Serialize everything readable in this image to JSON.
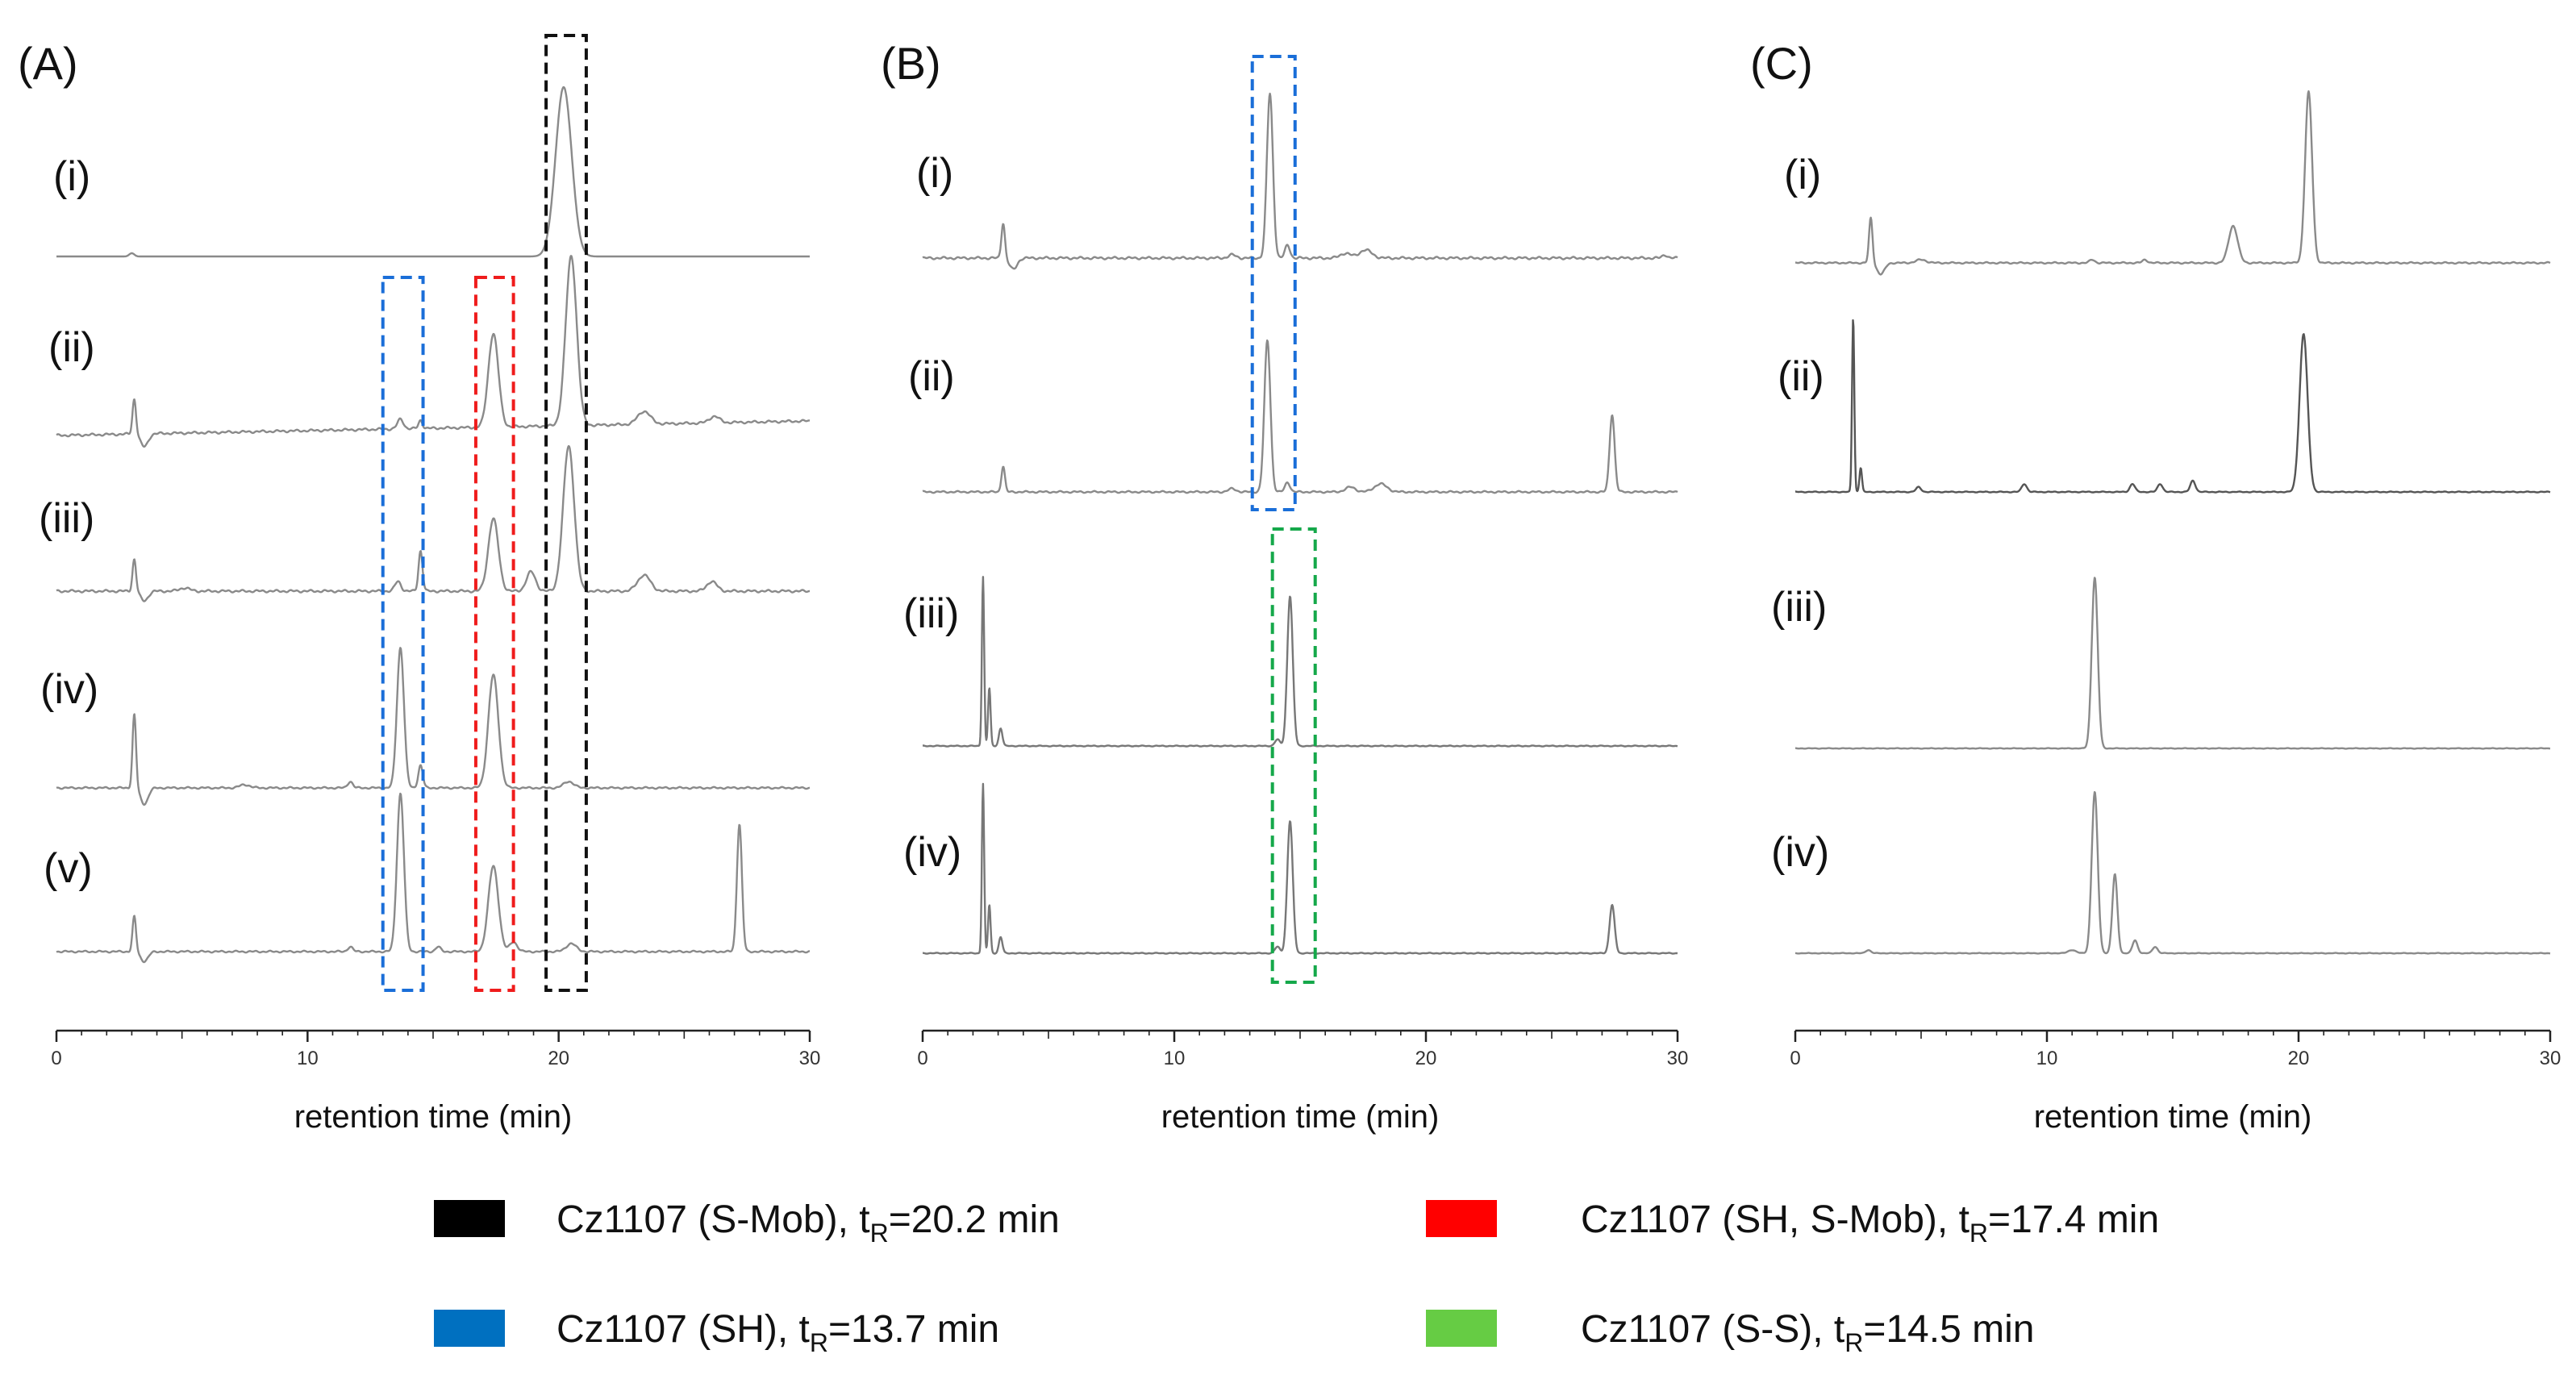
{
  "chart_data": {
    "type": "line",
    "xaxis": {
      "label": "retention time (min)",
      "range": [
        0,
        30
      ],
      "ticks": [
        0,
        10,
        20,
        30
      ]
    },
    "panels": [
      {
        "label": "(A)",
        "traces": [
          {
            "label": "(i)",
            "color": "#8a8a8a",
            "noise": 0.0,
            "peaks": [
              [
                3.0,
                2,
                0.1
              ],
              [
                20.2,
                105,
                0.32
              ]
            ]
          },
          {
            "label": "(ii)",
            "color": "#8a8a8a",
            "noise": 0.8,
            "peaks": [
              [
                3.1,
                22,
                0.07
              ],
              [
                3.5,
                -8,
                0.15
              ],
              [
                13.7,
                6,
                0.12
              ],
              [
                14.5,
                5,
                0.08
              ],
              [
                17.4,
                58,
                0.2
              ],
              [
                20.5,
                105,
                0.22
              ],
              [
                23.4,
                8,
                0.25
              ],
              [
                26.2,
                4,
                0.2
              ]
            ]
          },
          {
            "label": "(iii)",
            "color": "#8a8a8a",
            "noise": 0.8,
            "peaks": [
              [
                3.1,
                20,
                0.07
              ],
              [
                3.5,
                -6,
                0.15
              ],
              [
                5.1,
                2,
                0.2
              ],
              [
                13.6,
                6,
                0.12
              ],
              [
                14.5,
                25,
                0.08
              ],
              [
                17.4,
                45,
                0.2
              ],
              [
                18.9,
                12,
                0.18
              ],
              [
                20.4,
                90,
                0.22
              ],
              [
                23.4,
                10,
                0.25
              ],
              [
                26.1,
                6,
                0.2
              ]
            ]
          },
          {
            "label": "(iv)",
            "color": "#8a8a8a",
            "noise": 0.6,
            "peaks": [
              [
                3.1,
                46,
                0.07
              ],
              [
                3.5,
                -10,
                0.15
              ],
              [
                7.5,
                2,
                0.2
              ],
              [
                11.7,
                4,
                0.1
              ],
              [
                13.7,
                87,
                0.14
              ],
              [
                14.5,
                14,
                0.09
              ],
              [
                17.4,
                70,
                0.2
              ],
              [
                20.4,
                4,
                0.2
              ]
            ]
          },
          {
            "label": "(v)",
            "color": "#8a8a8a",
            "noise": 0.6,
            "peaks": [
              [
                3.1,
                22,
                0.07
              ],
              [
                3.5,
                -6,
                0.15
              ],
              [
                11.7,
                3,
                0.1
              ],
              [
                13.7,
                98,
                0.14
              ],
              [
                15.2,
                3,
                0.1
              ],
              [
                17.4,
                53,
                0.2
              ],
              [
                18.2,
                6,
                0.15
              ],
              [
                20.5,
                5,
                0.2
              ],
              [
                27.2,
                79,
                0.1
              ]
            ]
          }
        ],
        "highlights": [
          {
            "color": "#1a6ed8",
            "x": [
              13.0,
              14.6
            ],
            "traces": [
              1,
              4
            ]
          },
          {
            "color": "#ef1c1c",
            "x": [
              16.7,
              18.2
            ],
            "traces": [
              1,
              4
            ]
          },
          {
            "color": "#111111",
            "x": [
              19.5,
              21.1
            ],
            "traces": [
              0,
              4
            ]
          }
        ]
      },
      {
        "label": "(B)",
        "traces": [
          {
            "label": "(i)",
            "color": "#8a8a8a",
            "noise": 0.8,
            "peaks": [
              [
                3.2,
                22,
                0.07
              ],
              [
                3.6,
                -7,
                0.15
              ],
              [
                12.3,
                2,
                0.15
              ],
              [
                13.8,
                102,
                0.12
              ],
              [
                14.5,
                8,
                0.1
              ],
              [
                16.8,
                3,
                0.2
              ],
              [
                17.6,
                5,
                0.25
              ],
              [
                29.5,
                2,
                0.1
              ]
            ]
          },
          {
            "label": "(ii)",
            "color": "#8a8a8a",
            "noise": 0.6,
            "peaks": [
              [
                3.2,
                16,
                0.07
              ],
              [
                12.3,
                2,
                0.15
              ],
              [
                13.7,
                94,
                0.12
              ],
              [
                14.5,
                6,
                0.1
              ],
              [
                17.0,
                3,
                0.2
              ],
              [
                18.2,
                5,
                0.25
              ],
              [
                27.4,
                48,
                0.1
              ]
            ]
          },
          {
            "label": "(iii)",
            "color": "#777777",
            "noise": 0.3,
            "peaks": [
              [
                2.4,
                105,
                0.045
              ],
              [
                2.65,
                36,
                0.05
              ],
              [
                3.1,
                11,
                0.07
              ],
              [
                14.1,
                4,
                0.1
              ],
              [
                14.6,
                93,
                0.11
              ]
            ]
          },
          {
            "label": "(iv)",
            "color": "#777777",
            "noise": 0.3,
            "peaks": [
              [
                2.4,
                105,
                0.045
              ],
              [
                2.65,
                30,
                0.05
              ],
              [
                3.1,
                10,
                0.07
              ],
              [
                14.1,
                4,
                0.1
              ],
              [
                14.6,
                82,
                0.11
              ],
              [
                27.4,
                30,
                0.1
              ]
            ]
          }
        ],
        "highlights": [
          {
            "color": "#1a6ed8",
            "x": [
              13.1,
              14.8
            ],
            "traces": [
              0,
              1
            ]
          },
          {
            "color": "#15a84a",
            "x": [
              13.9,
              15.6
            ],
            "traces": [
              2,
              3
            ]
          }
        ]
      },
      {
        "label": "(C)",
        "traces": [
          {
            "label": "(i)",
            "color": "#8a8a8a",
            "noise": 0.5,
            "peaks": [
              [
                3.0,
                28,
                0.07
              ],
              [
                3.4,
                -7,
                0.15
              ],
              [
                5.0,
                2,
                0.2
              ],
              [
                11.8,
                2,
                0.1
              ],
              [
                13.9,
                2,
                0.1
              ],
              [
                17.4,
                23,
                0.18
              ],
              [
                20.4,
                106,
                0.14
              ]
            ]
          },
          {
            "label": "(ii)",
            "color": "#555555",
            "noise": 0.3,
            "peaks": [
              [
                2.3,
                108,
                0.045
              ],
              [
                2.6,
                15,
                0.05
              ],
              [
                4.9,
                3,
                0.1
              ],
              [
                9.1,
                5,
                0.1
              ],
              [
                13.4,
                5,
                0.1
              ],
              [
                14.5,
                5,
                0.1
              ],
              [
                15.8,
                7,
                0.1
              ],
              [
                20.2,
                98,
                0.16
              ]
            ]
          },
          {
            "label": "(iii)",
            "color": "#8a8a8a",
            "noise": 0.2,
            "peaks": [
              [
                11.9,
                106,
                0.12
              ]
            ]
          },
          {
            "label": "(iv)",
            "color": "#8a8a8a",
            "noise": 0.2,
            "peaks": [
              [
                2.9,
                2,
                0.1
              ],
              [
                11.0,
                2,
                0.15
              ],
              [
                11.9,
                100,
                0.12
              ],
              [
                12.7,
                49,
                0.1
              ],
              [
                13.5,
                8,
                0.1
              ],
              [
                14.3,
                4,
                0.1
              ]
            ]
          }
        ],
        "highlights": []
      }
    ]
  },
  "legend": [
    {
      "color": "#000000",
      "name": "Cz1107 (S-Mob), t",
      "sub": "R",
      "rest": "=20.2 min"
    },
    {
      "color": "#ff0000",
      "name": "Cz1107 (SH, S-Mob), t",
      "sub": "R",
      "rest": "=17.4 min"
    },
    {
      "color": "#0070c0",
      "name": "Cz1107 (SH), t",
      "sub": "R",
      "rest": "=13.7 min"
    },
    {
      "color": "#66cc44",
      "name": "Cz1107 (S-S), t",
      "sub": "R",
      "rest": "=14.5 min"
    }
  ]
}
